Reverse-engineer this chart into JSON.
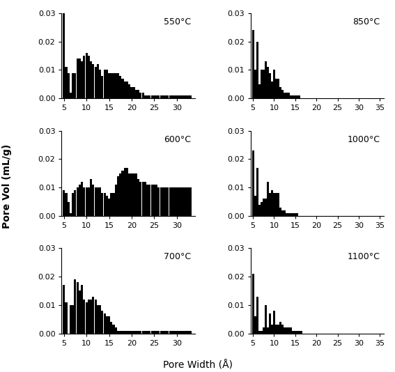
{
  "subplots": [
    {
      "label": "550°C",
      "pore_widths": [
        5.0,
        5.5,
        6.0,
        6.5,
        7.0,
        7.5,
        8.0,
        8.5,
        9.0,
        9.5,
        10.0,
        10.5,
        11.0,
        11.5,
        12.0,
        12.5,
        13.0,
        13.5,
        14.0,
        14.5,
        15.0,
        15.5,
        16.0,
        16.5,
        17.0,
        17.5,
        18.0,
        18.5,
        19.0,
        19.5,
        20.0,
        20.5,
        21.0,
        21.5,
        22.0,
        22.5,
        23.0,
        23.5,
        24.0,
        24.5,
        25.0,
        25.5,
        26.0,
        26.5,
        27.0,
        27.5,
        28.0,
        28.5,
        29.0,
        29.5,
        30.0,
        30.5,
        31.0,
        31.5,
        32.0,
        32.5,
        33.0
      ],
      "values": [
        0.03,
        0.011,
        0.009,
        0.002,
        0.009,
        0.009,
        0.014,
        0.014,
        0.013,
        0.015,
        0.016,
        0.015,
        0.013,
        0.012,
        0.011,
        0.012,
        0.01,
        0.008,
        0.01,
        0.01,
        0.009,
        0.009,
        0.009,
        0.009,
        0.009,
        0.008,
        0.007,
        0.006,
        0.006,
        0.005,
        0.004,
        0.004,
        0.003,
        0.003,
        0.002,
        0.002,
        0.001,
        0.001,
        0.001,
        0.001,
        0.001,
        0.001,
        0.001,
        0.001,
        0.001,
        0.001,
        0.001,
        0.001,
        0.001,
        0.001,
        0.001,
        0.001,
        0.001,
        0.001,
        0.001,
        0.001,
        0.001
      ],
      "xlim": [
        4.5,
        34.0
      ]
    },
    {
      "label": "850°C",
      "pore_widths": [
        5.0,
        5.5,
        6.0,
        6.5,
        7.0,
        7.5,
        8.0,
        8.5,
        9.0,
        9.5,
        10.0,
        10.5,
        11.0,
        11.5,
        12.0,
        12.5,
        13.0,
        13.5,
        14.0,
        14.5,
        15.0,
        15.5,
        16.0,
        16.5,
        17.0,
        17.5,
        18.0,
        18.5,
        19.0,
        19.5,
        20.0,
        20.5,
        21.0,
        21.5,
        22.0,
        22.5,
        23.0,
        23.5,
        24.0,
        24.5,
        25.0,
        25.5,
        26.0,
        26.5,
        27.0,
        27.5,
        28.0,
        28.5,
        29.0,
        29.5,
        30.0,
        30.5,
        31.0,
        31.5,
        32.0,
        32.5,
        33.0,
        33.5,
        34.0,
        34.5,
        35.0
      ],
      "values": [
        0.024,
        0.01,
        0.02,
        0.005,
        0.01,
        0.01,
        0.013,
        0.011,
        0.009,
        0.006,
        0.01,
        0.007,
        0.007,
        0.004,
        0.003,
        0.002,
        0.002,
        0.002,
        0.001,
        0.001,
        0.001,
        0.001,
        0.001,
        0.0,
        0.0,
        0.0,
        0.0,
        0.0,
        0.0,
        0.0,
        0.0,
        0.0,
        0.0,
        0.0,
        0.0,
        0.0,
        0.0,
        0.0,
        0.0,
        0.0,
        0.0,
        0.0,
        0.0,
        0.0,
        0.0,
        0.0,
        0.0,
        0.0,
        0.0,
        0.0,
        0.0,
        0.0,
        0.0,
        0.0,
        0.0,
        0.0,
        0.0,
        0.0,
        0.0,
        0.0,
        0.0
      ],
      "xlim": [
        4.5,
        36.0
      ]
    },
    {
      "label": "600°C",
      "pore_widths": [
        5.0,
        5.5,
        6.0,
        6.5,
        7.0,
        7.5,
        8.0,
        8.5,
        9.0,
        9.5,
        10.0,
        10.5,
        11.0,
        11.5,
        12.0,
        12.5,
        13.0,
        13.5,
        14.0,
        14.5,
        15.0,
        15.5,
        16.0,
        16.5,
        17.0,
        17.5,
        18.0,
        18.5,
        19.0,
        19.5,
        20.0,
        20.5,
        21.0,
        21.5,
        22.0,
        22.5,
        23.0,
        23.5,
        24.0,
        24.5,
        25.0,
        25.5,
        26.0,
        26.5,
        27.0,
        27.5,
        28.0,
        28.5,
        29.0,
        29.5,
        30.0,
        30.5,
        31.0,
        31.5,
        32.0,
        32.5,
        33.0
      ],
      "values": [
        0.009,
        0.008,
        0.005,
        0.001,
        0.008,
        0.009,
        0.01,
        0.011,
        0.012,
        0.01,
        0.01,
        0.01,
        0.013,
        0.011,
        0.01,
        0.01,
        0.01,
        0.008,
        0.008,
        0.007,
        0.006,
        0.008,
        0.008,
        0.011,
        0.014,
        0.015,
        0.016,
        0.017,
        0.017,
        0.015,
        0.015,
        0.015,
        0.015,
        0.013,
        0.012,
        0.012,
        0.012,
        0.011,
        0.011,
        0.011,
        0.011,
        0.011,
        0.01,
        0.01,
        0.01,
        0.01,
        0.01,
        0.01,
        0.01,
        0.01,
        0.01,
        0.01,
        0.01,
        0.01,
        0.01,
        0.01,
        0.01
      ],
      "xlim": [
        4.5,
        34.0
      ]
    },
    {
      "label": "1000°C",
      "pore_widths": [
        5.0,
        5.5,
        6.0,
        6.5,
        7.0,
        7.5,
        8.0,
        8.5,
        9.0,
        9.5,
        10.0,
        10.5,
        11.0,
        11.5,
        12.0,
        12.5,
        13.0,
        13.5,
        14.0,
        14.5,
        15.0,
        15.5,
        16.0,
        16.5,
        17.0,
        17.5,
        18.0,
        18.5,
        19.0,
        19.5,
        20.0,
        20.5,
        21.0,
        21.5,
        22.0,
        22.5,
        23.0,
        23.5,
        24.0,
        24.5,
        25.0,
        25.5,
        26.0,
        26.5,
        27.0,
        27.5,
        28.0,
        28.5,
        29.0,
        29.5,
        30.0,
        30.5,
        31.0,
        31.5,
        32.0,
        32.5,
        33.0,
        33.5,
        34.0,
        34.5,
        35.0
      ],
      "values": [
        0.023,
        0.007,
        0.017,
        0.004,
        0.005,
        0.006,
        0.006,
        0.012,
        0.008,
        0.009,
        0.008,
        0.008,
        0.008,
        0.003,
        0.002,
        0.002,
        0.001,
        0.001,
        0.001,
        0.001,
        0.001,
        0.001,
        0.0,
        0.0,
        0.0,
        0.0,
        0.0,
        0.0,
        0.0,
        0.0,
        0.0,
        0.0,
        0.0,
        0.0,
        0.0,
        0.0,
        0.0,
        0.0,
        0.0,
        0.0,
        0.0,
        0.0,
        0.0,
        0.0,
        0.0,
        0.0,
        0.0,
        0.0,
        0.0,
        0.0,
        0.0,
        0.0,
        0.0,
        0.0,
        0.0,
        0.0,
        0.0,
        0.0,
        0.0,
        0.0,
        0.0
      ],
      "xlim": [
        4.5,
        36.0
      ]
    },
    {
      "label": "700°C",
      "pore_widths": [
        5.0,
        5.5,
        6.0,
        6.5,
        7.0,
        7.5,
        8.0,
        8.5,
        9.0,
        9.5,
        10.0,
        10.5,
        11.0,
        11.5,
        12.0,
        12.5,
        13.0,
        13.5,
        14.0,
        14.5,
        15.0,
        15.5,
        16.0,
        16.5,
        17.0,
        17.5,
        18.0,
        18.5,
        19.0,
        19.5,
        20.0,
        20.5,
        21.0,
        21.5,
        22.0,
        22.5,
        23.0,
        23.5,
        24.0,
        24.5,
        25.0,
        25.5,
        26.0,
        26.5,
        27.0,
        27.5,
        28.0,
        28.5,
        29.0,
        29.5,
        30.0,
        30.5,
        31.0,
        31.5,
        32.0,
        32.5,
        33.0
      ],
      "values": [
        0.017,
        0.011,
        0.0,
        0.01,
        0.01,
        0.019,
        0.018,
        0.015,
        0.017,
        0.012,
        0.011,
        0.012,
        0.012,
        0.013,
        0.012,
        0.01,
        0.01,
        0.008,
        0.007,
        0.006,
        0.006,
        0.004,
        0.003,
        0.002,
        0.001,
        0.001,
        0.001,
        0.001,
        0.001,
        0.001,
        0.001,
        0.001,
        0.001,
        0.001,
        0.001,
        0.001,
        0.001,
        0.001,
        0.001,
        0.001,
        0.001,
        0.001,
        0.001,
        0.001,
        0.001,
        0.001,
        0.001,
        0.001,
        0.001,
        0.001,
        0.001,
        0.001,
        0.001,
        0.001,
        0.001,
        0.001,
        0.001
      ],
      "xlim": [
        4.5,
        34.0
      ]
    },
    {
      "label": "1100°C",
      "pore_widths": [
        5.0,
        5.5,
        6.0,
        6.5,
        7.0,
        7.5,
        8.0,
        8.5,
        9.0,
        9.5,
        10.0,
        10.5,
        11.0,
        11.5,
        12.0,
        12.5,
        13.0,
        13.5,
        14.0,
        14.5,
        15.0,
        15.5,
        16.0,
        16.5,
        17.0,
        17.5,
        18.0,
        18.5,
        19.0,
        19.5,
        20.0,
        20.5,
        21.0,
        21.5,
        22.0,
        22.5,
        23.0,
        23.5,
        24.0,
        24.5,
        25.0,
        25.5,
        26.0,
        26.5,
        27.0,
        27.5,
        28.0,
        28.5,
        29.0,
        29.5,
        30.0,
        30.5,
        31.0,
        31.5,
        32.0,
        32.5,
        33.0,
        33.5,
        34.0,
        34.5,
        35.0
      ],
      "values": [
        0.021,
        0.006,
        0.013,
        0.001,
        0.001,
        0.002,
        0.01,
        0.002,
        0.007,
        0.003,
        0.008,
        0.003,
        0.003,
        0.004,
        0.003,
        0.002,
        0.002,
        0.002,
        0.002,
        0.001,
        0.001,
        0.001,
        0.001,
        0.001,
        0.0,
        0.0,
        0.0,
        0.0,
        0.0,
        0.0,
        0.0,
        0.0,
        0.0,
        0.0,
        0.0,
        0.0,
        0.0,
        0.0,
        0.0,
        0.0,
        0.0,
        0.0,
        0.0,
        0.0,
        0.0,
        0.0,
        0.0,
        0.0,
        0.0,
        0.0,
        0.0,
        0.0,
        0.0,
        0.0,
        0.0,
        0.0,
        0.0,
        0.0,
        0.0,
        0.0,
        0.0
      ],
      "xlim": [
        4.5,
        36.0
      ]
    }
  ],
  "ylabel": "Pore Vol (mL/g)",
  "xlabel": "Pore Width (Å)",
  "ylim": [
    0.0,
    0.03
  ],
  "yticks": [
    0.0,
    0.01,
    0.02,
    0.03
  ],
  "xticks_left": [
    5,
    10,
    15,
    20,
    25,
    30
  ],
  "xticks_right": [
    5,
    10,
    15,
    20,
    25,
    30,
    35
  ],
  "bar_color": "#000000",
  "bar_width": 0.48,
  "font_size": 9
}
